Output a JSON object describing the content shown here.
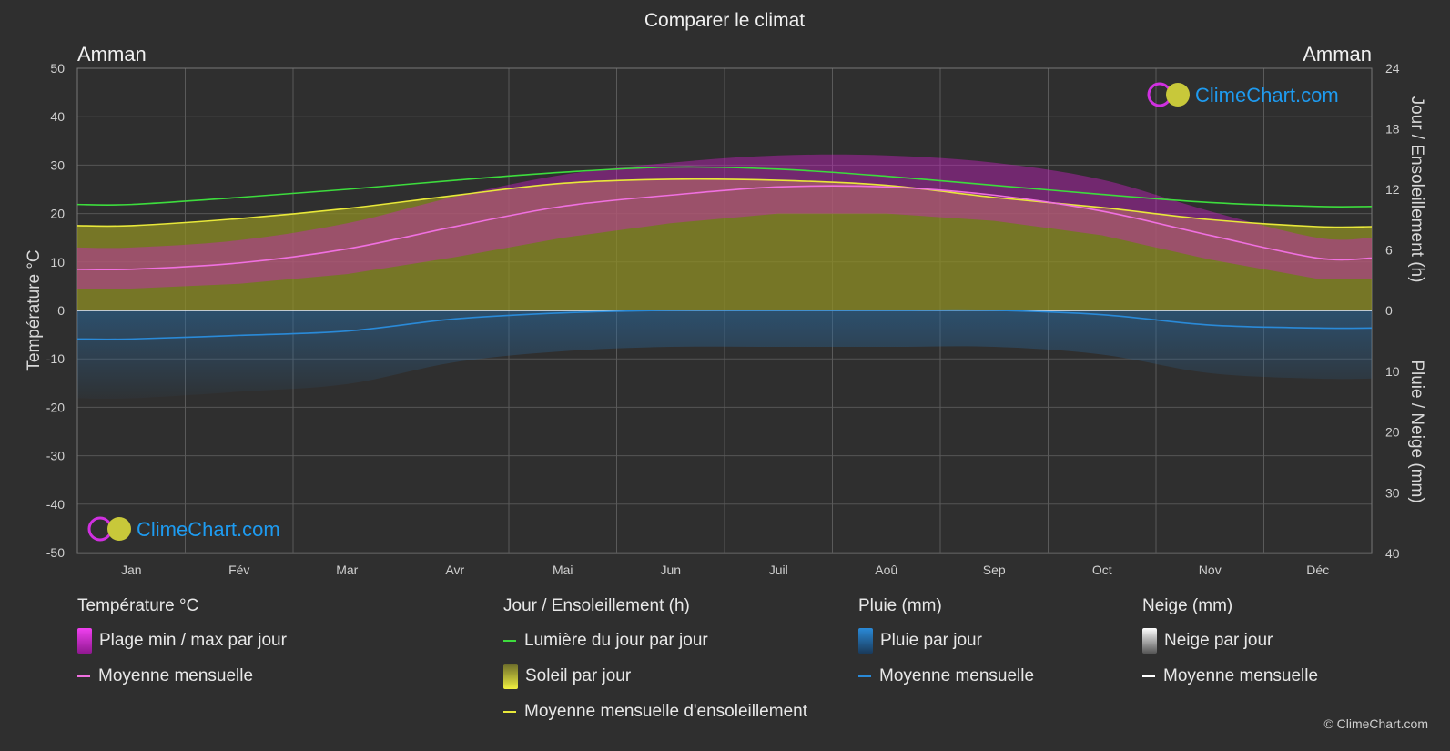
{
  "header": {
    "title": "Comparer le climat",
    "city_left": "Amman",
    "city_right": "Amman"
  },
  "axes": {
    "left_title": "Température °C",
    "right_top_title": "Jour / Ensoleillement (h)",
    "right_bottom_title": "Pluie / Neige (mm)",
    "left_ticks": [
      "50",
      "40",
      "30",
      "20",
      "10",
      "0",
      "-10",
      "-20",
      "-30",
      "-40",
      "-50"
    ],
    "right_top_ticks": [
      "24",
      "18",
      "12",
      "6",
      "0"
    ],
    "right_bottom_ticks": [
      "10",
      "20",
      "30",
      "40"
    ]
  },
  "chart_data": {
    "type": "line",
    "categories": [
      "Jan",
      "Fév",
      "Mar",
      "Avr",
      "Mai",
      "Jun",
      "Juil",
      "Aoû",
      "Sep",
      "Oct",
      "Nov",
      "Déc"
    ],
    "temperature_axis": {
      "label": "Température °C",
      "range": [
        -50,
        50
      ]
    },
    "sun_axis": {
      "label": "Jour / Ensoleillement (h)",
      "range": [
        0,
        24
      ]
    },
    "precip_axis": {
      "label": "Pluie / Neige (mm)",
      "range": [
        0,
        40
      ],
      "inverted": true
    },
    "series": [
      {
        "name": "Lumière du jour par jour",
        "unit": "h",
        "color": "#3ddc3d",
        "values": [
          10.5,
          11.2,
          12.0,
          12.9,
          13.7,
          14.2,
          14.0,
          13.3,
          12.4,
          11.5,
          10.7,
          10.3
        ]
      },
      {
        "name": "Moyenne mensuelle d'ensoleillement",
        "unit": "h",
        "color": "#e8e83a",
        "values": [
          8.4,
          9.1,
          10.1,
          11.4,
          12.6,
          13.0,
          12.9,
          12.4,
          11.2,
          10.2,
          9.0,
          8.3
        ]
      },
      {
        "name": "Moyenne mensuelle",
        "group": "Température °C",
        "unit": "°C",
        "color": "#f070e0",
        "values": [
          8.5,
          9.8,
          12.7,
          17.3,
          21.5,
          23.8,
          25.5,
          25.5,
          23.8,
          20.5,
          15.5,
          10.8
        ]
      },
      {
        "name": "Moyenne mensuelle",
        "group": "Pluie (mm)",
        "unit": "mm",
        "color": "#2a8ad8",
        "values": [
          4.7,
          4.1,
          3.4,
          1.4,
          0.4,
          0.0,
          0.0,
          0.0,
          0.0,
          0.7,
          2.4,
          2.9
        ]
      }
    ],
    "temp_band": {
      "name": "Plage min / max par jour",
      "min": [
        4.5,
        5.5,
        7.5,
        11.0,
        15.0,
        18.0,
        20.0,
        20.0,
        18.5,
        15.5,
        10.5,
        6.5
      ],
      "max": [
        13.0,
        14.5,
        18.0,
        23.5,
        28.0,
        30.5,
        32.0,
        32.0,
        30.5,
        27.0,
        20.5,
        15.0
      ]
    }
  },
  "legend": {
    "temperature": {
      "title": "Température °C",
      "items": [
        "Plage min / max par jour",
        "Moyenne mensuelle"
      ]
    },
    "sun": {
      "title": "Jour / Ensoleillement (h)",
      "items": [
        "Lumière du jour par jour",
        "Soleil par jour",
        "Moyenne mensuelle d'ensoleillement"
      ]
    },
    "rain": {
      "title": "Pluie (mm)",
      "items": [
        "Pluie par jour",
        "Moyenne mensuelle"
      ]
    },
    "snow": {
      "title": "Neige (mm)",
      "items": [
        "Neige par jour",
        "Moyenne mensuelle"
      ]
    }
  },
  "branding": {
    "logo_text": "ClimeChart.com",
    "copyright": "© ClimeChart.com"
  },
  "colors": {
    "background": "#2f2f2f",
    "temp_band": "#d020c8",
    "sun_fill": "#9a9a22",
    "rain": "#2a8ad8",
    "daylight": "#3ddc3d",
    "sunshine_mean": "#e8e83a",
    "temp_mean": "#f070e0",
    "snow": "#ffffff"
  }
}
